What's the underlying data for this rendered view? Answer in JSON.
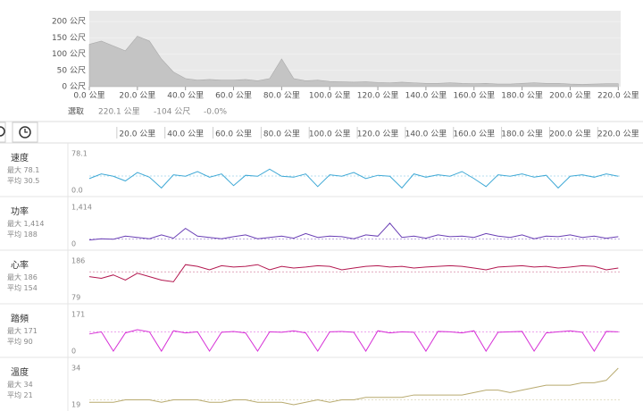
{
  "chart_data": [
    {
      "type": "area",
      "color": "#c4c4c4",
      "background": "#e9e9e9",
      "x": [
        0,
        5,
        10,
        15,
        20,
        25,
        30,
        35,
        40,
        45,
        50,
        55,
        60,
        65,
        70,
        75,
        80,
        85,
        90,
        95,
        100,
        105,
        110,
        115,
        120,
        125,
        130,
        135,
        140,
        145,
        150,
        155,
        160,
        165,
        170,
        175,
        180,
        185,
        190,
        195,
        200,
        205,
        210,
        215,
        220
      ],
      "values": [
        130,
        140,
        125,
        110,
        155,
        140,
        85,
        45,
        25,
        20,
        22,
        20,
        20,
        22,
        18,
        25,
        85,
        25,
        18,
        20,
        16,
        15,
        14,
        15,
        13,
        12,
        14,
        12,
        10,
        10,
        12,
        10,
        9,
        10,
        8,
        8,
        10,
        12,
        10,
        10,
        8,
        7,
        8,
        9,
        9
      ],
      "xlim": [
        0,
        221
      ],
      "ylim": [
        0,
        233
      ],
      "xticks": [
        {
          "value": 0,
          "label": "0.0 公里"
        },
        {
          "value": 20,
          "label": "20.0 公里"
        },
        {
          "value": 40,
          "label": "40.0 公里"
        },
        {
          "value": 60,
          "label": "60.0 公里"
        },
        {
          "value": 80,
          "label": "80.0 公里"
        },
        {
          "value": 100,
          "label": "100.0 公里"
        },
        {
          "value": 120,
          "label": "120.0 公里"
        },
        {
          "value": 140,
          "label": "140.0 公里"
        },
        {
          "value": 160,
          "label": "160.0 公里"
        },
        {
          "value": 180,
          "label": "180.0 公里"
        },
        {
          "value": 200,
          "label": "200.0 公里"
        },
        {
          "value": 220,
          "label": "220.0 公里"
        }
      ],
      "yticks": [
        {
          "value": 0,
          "label": "0 公尺"
        },
        {
          "value": 50,
          "label": "50 公尺"
        },
        {
          "value": 100,
          "label": "100 公尺"
        },
        {
          "value": 150,
          "label": "150 公尺"
        },
        {
          "value": 200,
          "label": "200 公尺"
        }
      ]
    },
    {
      "type": "line",
      "name": "速度",
      "max_label": "最大",
      "max": 78.1,
      "avg_label": "平均",
      "avg": 30.5,
      "color": "#3fa9d6",
      "x": [
        0,
        5,
        10,
        15,
        20,
        25,
        30,
        35,
        40,
        45,
        50,
        55,
        60,
        65,
        70,
        75,
        80,
        85,
        90,
        95,
        100,
        105,
        110,
        115,
        120,
        125,
        130,
        135,
        140,
        145,
        150,
        155,
        160,
        165,
        170,
        175,
        180,
        185,
        190,
        195,
        200,
        205,
        210,
        215,
        220
      ],
      "values": [
        25,
        35,
        30,
        20,
        38,
        28,
        5,
        33,
        30,
        40,
        28,
        35,
        10,
        32,
        30,
        45,
        30,
        28,
        35,
        8,
        33,
        30,
        38,
        25,
        32,
        30,
        5,
        35,
        28,
        33,
        30,
        40,
        25,
        8,
        33,
        30,
        35,
        28,
        32,
        5,
        30,
        33,
        28,
        35,
        30
      ],
      "ylim": [
        0,
        78.1
      ],
      "yticks": [
        {
          "value": 0,
          "label": "0.0"
        },
        78.1
      ]
    },
    {
      "type": "line",
      "name": "功率",
      "max_label": "最大",
      "max": {
        "value": 1414,
        "label": "1,414"
      },
      "avg_label": "平均",
      "avg": 188,
      "color": "#6a3fb5",
      "x": [
        0,
        5,
        10,
        15,
        20,
        25,
        30,
        35,
        40,
        45,
        50,
        55,
        60,
        65,
        70,
        75,
        80,
        85,
        90,
        95,
        100,
        105,
        110,
        115,
        120,
        125,
        130,
        135,
        140,
        145,
        150,
        155,
        160,
        165,
        170,
        175,
        180,
        185,
        190,
        195,
        200,
        205,
        210,
        215,
        220
      ],
      "values": [
        150,
        200,
        180,
        300,
        250,
        200,
        350,
        220,
        600,
        300,
        250,
        200,
        280,
        350,
        200,
        250,
        300,
        220,
        400,
        250,
        300,
        280,
        200,
        350,
        300,
        800,
        250,
        300,
        220,
        350,
        280,
        300,
        250,
        400,
        300,
        250,
        350,
        200,
        300,
        280,
        350,
        250,
        300,
        220,
        280
      ],
      "ylim": [
        0,
        1414
      ],
      "yticks": [
        0,
        {
          "value": 1414,
          "label": "1,414"
        }
      ]
    },
    {
      "type": "line",
      "name": "心率",
      "max_label": "最大",
      "max": 186,
      "avg_label": "平均",
      "avg": 154,
      "color": "#b3174f",
      "x": [
        0,
        5,
        10,
        15,
        20,
        25,
        30,
        35,
        40,
        45,
        50,
        55,
        60,
        65,
        70,
        75,
        80,
        85,
        90,
        95,
        100,
        105,
        110,
        115,
        120,
        125,
        130,
        135,
        140,
        145,
        150,
        155,
        160,
        165,
        170,
        175,
        180,
        185,
        190,
        195,
        200,
        205,
        210,
        215,
        220
      ],
      "values": [
        140,
        135,
        145,
        130,
        150,
        140,
        130,
        125,
        175,
        170,
        160,
        172,
        168,
        170,
        175,
        160,
        170,
        165,
        168,
        172,
        170,
        160,
        165,
        170,
        172,
        168,
        170,
        165,
        168,
        170,
        172,
        170,
        165,
        160,
        168,
        170,
        172,
        168,
        170,
        165,
        168,
        172,
        170,
        160,
        165
      ],
      "ylim": [
        79,
        186
      ],
      "yticks": [
        79,
        186
      ]
    },
    {
      "type": "line",
      "name": "踏頻",
      "max_label": "最大",
      "max": 171,
      "avg_label": "平均",
      "avg": 90,
      "color": "#d62fd6",
      "x": [
        0,
        5,
        10,
        15,
        20,
        25,
        30,
        35,
        40,
        45,
        50,
        55,
        60,
        65,
        70,
        75,
        80,
        85,
        90,
        95,
        100,
        105,
        110,
        115,
        120,
        125,
        130,
        135,
        140,
        145,
        150,
        155,
        160,
        165,
        170,
        175,
        180,
        185,
        190,
        195,
        200,
        205,
        210,
        215,
        220
      ],
      "values": [
        80,
        90,
        0,
        85,
        100,
        90,
        0,
        95,
        85,
        90,
        0,
        88,
        92,
        85,
        0,
        90,
        88,
        95,
        85,
        0,
        90,
        92,
        88,
        0,
        95,
        85,
        90,
        88,
        0,
        92,
        90,
        85,
        95,
        0,
        88,
        90,
        92,
        0,
        85,
        90,
        95,
        88,
        0,
        92,
        90
      ],
      "ylim": [
        0,
        171
      ],
      "yticks": [
        0,
        171
      ]
    },
    {
      "type": "line",
      "name": "溫度",
      "max_label": "最大",
      "max": 34,
      "avg_label": "平均",
      "avg": 21,
      "color": "#b8aa6f",
      "x": [
        0,
        5,
        10,
        15,
        20,
        25,
        30,
        35,
        40,
        45,
        50,
        55,
        60,
        65,
        70,
        75,
        80,
        85,
        90,
        95,
        100,
        105,
        110,
        115,
        120,
        125,
        130,
        135,
        140,
        145,
        150,
        155,
        160,
        165,
        170,
        175,
        180,
        185,
        190,
        195,
        200,
        205,
        210,
        215,
        220
      ],
      "values": [
        20,
        20,
        20,
        21,
        21,
        21,
        20,
        21,
        21,
        21,
        20,
        20,
        21,
        21,
        20,
        20,
        20,
        19,
        20,
        21,
        20,
        21,
        21,
        22,
        22,
        22,
        22,
        23,
        23,
        23,
        23,
        23,
        24,
        25,
        25,
        24,
        25,
        26,
        27,
        27,
        27,
        28,
        28,
        29,
        34
      ],
      "ylim": [
        19,
        34
      ],
      "yticks": [
        19,
        34
      ]
    }
  ],
  "selection": {
    "label": "選取",
    "distance": "220.1 公里",
    "elevation": "-104 公尺",
    "grade": "-0.0%"
  },
  "distance_axis": {
    "xlim": [
      0,
      221
    ],
    "xticks": [
      {
        "value": 20,
        "label": "20.0 公里"
      },
      {
        "value": 40,
        "label": "40.0 公里"
      },
      {
        "value": 60,
        "label": "60.0 公里"
      },
      {
        "value": 80,
        "label": "80.0 公里"
      },
      {
        "value": 100,
        "label": "100.0 公里"
      },
      {
        "value": 120,
        "label": "120.0 公里"
      },
      {
        "value": 140,
        "label": "140.0 公里"
      },
      {
        "value": 160,
        "label": "160.0 公里"
      },
      {
        "value": 180,
        "label": "180.0 公里"
      },
      {
        "value": 200,
        "label": "200.0 公里"
      },
      {
        "value": 220,
        "label": "220.0 公里"
      }
    ]
  }
}
